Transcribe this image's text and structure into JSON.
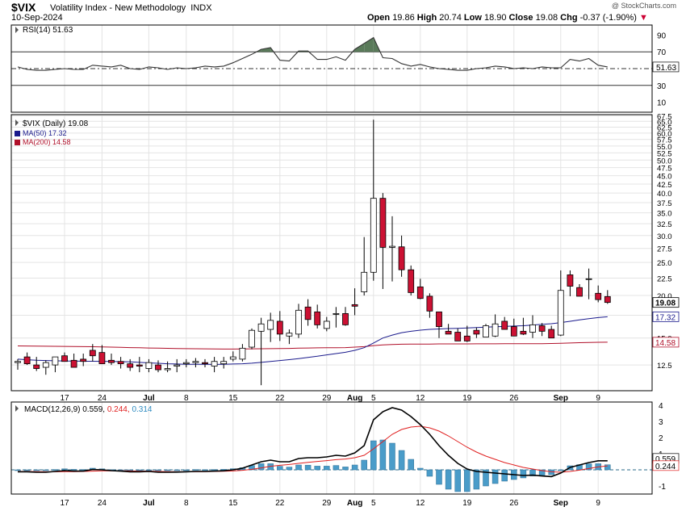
{
  "header": {
    "symbol": "$VIX",
    "name": "Volatility Index - New Methodology",
    "exchange": "INDX",
    "date": "10-Sep-2024",
    "watermark": "@ StockCharts.com",
    "open_label": "Open",
    "open": "19.86",
    "high_label": "High",
    "high": "20.74",
    "low_label": "Low",
    "low": "18.90",
    "close_label": "Close",
    "close": "19.08",
    "chg_label": "Chg",
    "chg": "-0.37 (-1.90%)"
  },
  "colors": {
    "up_candle": "#ffffff",
    "down_candle": "#cc1133",
    "candle_outline": "#000000",
    "ma50": "#1a1a8c",
    "ma200": "#b0102a",
    "macd_line": "#000000",
    "signal_line": "#e02020",
    "histogram": "#4a9cc9",
    "rsi_line": "#333333",
    "rsi_fill": "#5a7a5a",
    "grid": "#e4e4e4"
  },
  "chart_data": [
    {
      "type": "line",
      "title": "RSI(14) 51.63",
      "indicator": "RSI(14)",
      "last_value": "51.63",
      "yticks": [
        "90",
        "70",
        "50",
        "30",
        "10"
      ],
      "ylim": [
        0,
        100
      ],
      "reference_lines": [
        70,
        50,
        30
      ],
      "x": [
        "Jun 10",
        "Jun 11",
        "Jun 12",
        "Jun 13",
        "Jun 14",
        "Jun 17",
        "Jun 18",
        "Jun 20",
        "Jun 21",
        "Jun 24",
        "Jun 25",
        "Jun 26",
        "Jun 27",
        "Jun 28",
        "Jul 1",
        "Jul 2",
        "Jul 3",
        "Jul 5",
        "Jul 8",
        "Jul 9",
        "Jul 10",
        "Jul 11",
        "Jul 12",
        "Jul 15",
        "Jul 16",
        "Jul 17",
        "Jul 18",
        "Jul 19",
        "Jul 22",
        "Jul 23",
        "Jul 24",
        "Jul 25",
        "Jul 26",
        "Jul 29",
        "Jul 30",
        "Jul 31",
        "Aug 1",
        "Aug 2",
        "Aug 5",
        "Aug 6",
        "Aug 7",
        "Aug 8",
        "Aug 9",
        "Aug 12",
        "Aug 13",
        "Aug 14",
        "Aug 15",
        "Aug 16",
        "Aug 19",
        "Aug 20",
        "Aug 21",
        "Aug 22",
        "Aug 23",
        "Aug 26",
        "Aug 27",
        "Aug 28",
        "Aug 29",
        "Aug 30",
        "Sep 3",
        "Sep 4",
        "Sep 5",
        "Sep 6",
        "Sep 9",
        "Sep 10"
      ],
      "values": [
        52,
        49,
        48,
        48,
        49,
        50,
        49,
        49,
        54,
        53,
        52,
        54,
        50,
        49,
        52,
        51,
        49,
        51,
        50,
        51,
        53,
        52,
        53,
        57,
        62,
        67,
        73,
        75,
        60,
        59,
        71,
        71,
        61,
        61,
        64,
        60,
        73,
        80,
        87,
        63,
        62,
        56,
        53,
        55,
        52,
        50,
        49,
        48,
        48,
        50,
        51,
        53,
        52,
        50,
        51,
        50,
        52,
        51,
        51,
        61,
        59,
        62,
        54,
        52
      ]
    },
    {
      "type": "candlestick",
      "title": "$VIX (Daily) 19.08",
      "last_close_label": "19.08",
      "yscale": "log",
      "yticks": [
        "67.5",
        "65.0",
        "62.5",
        "60.0",
        "57.5",
        "55.0",
        "52.5",
        "50.0",
        "47.5",
        "45.0",
        "42.5",
        "40.0",
        "37.5",
        "35.0",
        "32.5",
        "30.0",
        "27.5",
        "25.0",
        "22.5",
        "20.0",
        "17.5",
        "15.0",
        "12.5"
      ],
      "ylim": [
        10.5,
        68
      ],
      "x": [
        "Jun 10",
        "Jun 11",
        "Jun 12",
        "Jun 13",
        "Jun 14",
        "Jun 17",
        "Jun 18",
        "Jun 20",
        "Jun 21",
        "Jun 24",
        "Jun 25",
        "Jun 26",
        "Jun 27",
        "Jun 28",
        "Jul 1",
        "Jul 2",
        "Jul 3",
        "Jul 5",
        "Jul 8",
        "Jul 9",
        "Jul 10",
        "Jul 11",
        "Jul 12",
        "Jul 15",
        "Jul 16",
        "Jul 17",
        "Jul 18",
        "Jul 19",
        "Jul 22",
        "Jul 23",
        "Jul 24",
        "Jul 25",
        "Jul 26",
        "Jul 29",
        "Jul 30",
        "Jul 31",
        "Aug 1",
        "Aug 2",
        "Aug 5",
        "Aug 6",
        "Aug 7",
        "Aug 8",
        "Aug 9",
        "Aug 12",
        "Aug 13",
        "Aug 14",
        "Aug 15",
        "Aug 16",
        "Aug 19",
        "Aug 20",
        "Aug 21",
        "Aug 22",
        "Aug 23",
        "Aug 26",
        "Aug 27",
        "Aug 28",
        "Aug 29",
        "Aug 30",
        "Sep 3",
        "Sep 4",
        "Sep 5",
        "Sep 6",
        "Sep 9",
        "Sep 10"
      ],
      "open": [
        12.7,
        13.2,
        12.5,
        12.3,
        12.5,
        13.3,
        12.9,
        13.0,
        13.8,
        13.6,
        12.9,
        12.8,
        12.6,
        12.5,
        12.2,
        12.5,
        12.1,
        12.4,
        12.6,
        12.7,
        12.7,
        12.4,
        12.6,
        13.0,
        13.0,
        14.1,
        15.7,
        15.9,
        16.8,
        15.2,
        15.4,
        18.5,
        17.9,
        16.0,
        17.6,
        17.7,
        18.8,
        20.5,
        23.4,
        38.6,
        27.7,
        27.8,
        23.8,
        21.2,
        19.9,
        17.9,
        15.7,
        15.6,
        15.2,
        15.8,
        15.1,
        15.2,
        16.8,
        16.2,
        15.7,
        15.6,
        16.3,
        15.9,
        15.3,
        23.0,
        21.1,
        22.4,
        20.3,
        19.86
      ],
      "high": [
        13.0,
        13.6,
        13.2,
        12.9,
        13.0,
        13.6,
        13.5,
        13.5,
        14.4,
        14.3,
        13.5,
        13.2,
        13.0,
        13.2,
        13.0,
        12.9,
        12.8,
        13.0,
        13.0,
        13.1,
        13.0,
        13.2,
        13.2,
        13.7,
        14.4,
        16.0,
        17.2,
        17.8,
        18.0,
        15.9,
        18.9,
        19.5,
        18.8,
        17.3,
        18.5,
        18.5,
        21.0,
        29.7,
        65.7,
        40.0,
        34.2,
        30.0,
        24.5,
        22.4,
        20.3,
        17.9,
        16.5,
        16.0,
        16.3,
        16.1,
        16.5,
        17.6,
        17.3,
        17.1,
        17.2,
        17.5,
        16.6,
        16.3,
        23.7,
        23.7,
        21.6,
        24.0,
        21.4,
        20.74
      ],
      "low": [
        12.1,
        12.5,
        12.0,
        11.7,
        11.9,
        12.8,
        12.5,
        12.4,
        12.8,
        12.9,
        12.5,
        12.2,
        12.0,
        11.9,
        11.9,
        11.9,
        11.9,
        11.9,
        12.3,
        12.3,
        12.3,
        11.9,
        12.2,
        12.8,
        12.8,
        13.9,
        10.9,
        14.6,
        14.7,
        14.4,
        15.0,
        16.3,
        16.0,
        15.7,
        16.1,
        16.3,
        17.5,
        20.0,
        22.1,
        20.9,
        22.0,
        22.7,
        20.0,
        19.5,
        17.2,
        15.0,
        15.4,
        14.8,
        14.6,
        15.0,
        15.2,
        15.1,
        15.9,
        15.3,
        15.3,
        15.0,
        15.2,
        15.1,
        15.2,
        19.9,
        20.2,
        19.5,
        19.1,
        18.9
      ],
      "close": [
        12.8,
        12.6,
        12.2,
        12.7,
        13.2,
        12.8,
        12.3,
        12.8,
        13.3,
        12.6,
        12.7,
        12.6,
        12.3,
        12.4,
        12.7,
        12.1,
        12.2,
        12.5,
        12.7,
        12.8,
        12.6,
        12.8,
        12.8,
        13.2,
        14.0,
        15.8,
        16.5,
        16.9,
        15.4,
        15.5,
        18.1,
        17.0,
        16.4,
        16.8,
        17.7,
        16.4,
        18.6,
        23.4,
        38.6,
        27.7,
        27.9,
        23.8,
        20.4,
        19.6,
        18.0,
        16.2,
        15.4,
        14.7,
        14.7,
        15.4,
        16.3,
        16.5,
        15.9,
        15.2,
        15.4,
        16.4,
        15.7,
        15.0,
        20.7,
        21.3,
        19.9,
        22.4,
        19.45,
        19.08
      ],
      "ma50_label": "MA(50) 17.32",
      "ma200_label": "MA(200) 14.58",
      "ma50_last_label": "17.32",
      "ma200_last_label": "14.58",
      "ma50": [
        13.0,
        12.95,
        12.9,
        12.88,
        12.86,
        12.84,
        12.83,
        12.82,
        12.82,
        12.81,
        12.8,
        12.78,
        12.76,
        12.72,
        12.68,
        12.64,
        12.6,
        12.58,
        12.56,
        12.56,
        12.56,
        12.55,
        12.56,
        12.58,
        12.6,
        12.65,
        12.72,
        12.8,
        12.88,
        12.96,
        13.05,
        13.16,
        13.26,
        13.38,
        13.5,
        13.62,
        13.8,
        14.05,
        14.5,
        15.0,
        15.3,
        15.55,
        15.7,
        15.82,
        15.9,
        15.95,
        15.99,
        16.02,
        16.05,
        16.1,
        16.14,
        16.18,
        16.22,
        16.26,
        16.3,
        16.38,
        16.45,
        16.52,
        16.65,
        16.8,
        16.95,
        17.1,
        17.22,
        17.32
      ],
      "ma200": [
        14.22,
        14.21,
        14.2,
        14.19,
        14.18,
        14.17,
        14.16,
        14.15,
        14.14,
        14.12,
        14.1,
        14.08,
        14.06,
        14.04,
        14.02,
        14.0,
        13.99,
        13.97,
        13.96,
        13.95,
        13.94,
        13.93,
        13.92,
        13.92,
        13.93,
        13.94,
        13.95,
        13.96,
        13.97,
        13.98,
        14.0,
        14.02,
        14.03,
        14.04,
        14.05,
        14.06,
        14.1,
        14.15,
        14.25,
        14.32,
        14.36,
        14.38,
        14.39,
        14.4,
        14.4,
        14.41,
        14.41,
        14.41,
        14.41,
        14.42,
        14.42,
        14.42,
        14.43,
        14.43,
        14.43,
        14.44,
        14.44,
        14.45,
        14.47,
        14.5,
        14.53,
        14.55,
        14.57,
        14.58
      ]
    },
    {
      "type": "line",
      "title": "MACD(12,26,9) 0.559, 0.244, 0.314",
      "indicator": "MACD(12,26,9)",
      "macd_value": "0.559",
      "signal_value": "0.244",
      "hist_value": "0.314",
      "macd_last_label": "0.559",
      "signal_last_label": "0.244",
      "yticks": [
        "4",
        "3",
        "2",
        "1",
        "-1"
      ],
      "ylim": [
        -1.5,
        4.2
      ],
      "x": [
        "Jun 10",
        "Jun 11",
        "Jun 12",
        "Jun 13",
        "Jun 14",
        "Jun 17",
        "Jun 18",
        "Jun 20",
        "Jun 21",
        "Jun 24",
        "Jun 25",
        "Jun 26",
        "Jun 27",
        "Jun 28",
        "Jul 1",
        "Jul 2",
        "Jul 3",
        "Jul 5",
        "Jul 8",
        "Jul 9",
        "Jul 10",
        "Jul 11",
        "Jul 12",
        "Jul 15",
        "Jul 16",
        "Jul 17",
        "Jul 18",
        "Jul 19",
        "Jul 22",
        "Jul 23",
        "Jul 24",
        "Jul 25",
        "Jul 26",
        "Jul 29",
        "Jul 30",
        "Jul 31",
        "Aug 1",
        "Aug 2",
        "Aug 5",
        "Aug 6",
        "Aug 7",
        "Aug 8",
        "Aug 9",
        "Aug 12",
        "Aug 13",
        "Aug 14",
        "Aug 15",
        "Aug 16",
        "Aug 19",
        "Aug 20",
        "Aug 21",
        "Aug 22",
        "Aug 23",
        "Aug 26",
        "Aug 27",
        "Aug 28",
        "Aug 29",
        "Aug 30",
        "Sep 3",
        "Sep 4",
        "Sep 5",
        "Sep 6",
        "Sep 9",
        "Sep 10"
      ],
      "series": [
        {
          "name": "MACD",
          "values": [
            -0.12,
            -0.12,
            -0.15,
            -0.15,
            -0.1,
            -0.05,
            -0.08,
            -0.08,
            0.02,
            0.0,
            -0.05,
            -0.08,
            -0.12,
            -0.12,
            -0.1,
            -0.15,
            -0.15,
            -0.14,
            -0.12,
            -0.1,
            -0.1,
            -0.08,
            -0.06,
            0.0,
            0.1,
            0.3,
            0.5,
            0.6,
            0.5,
            0.5,
            0.7,
            0.75,
            0.75,
            0.8,
            0.9,
            0.85,
            1.05,
            1.5,
            3.1,
            3.6,
            3.85,
            3.7,
            3.3,
            2.8,
            2.2,
            1.5,
            0.9,
            0.4,
            0.05,
            -0.1,
            -0.15,
            -0.2,
            -0.25,
            -0.3,
            -0.35,
            -0.33,
            -0.38,
            -0.42,
            -0.2,
            0.15,
            0.3,
            0.45,
            0.56,
            0.559
          ]
        },
        {
          "name": "Signal",
          "values": [
            -0.1,
            -0.1,
            -0.11,
            -0.12,
            -0.12,
            -0.11,
            -0.11,
            -0.1,
            -0.08,
            -0.06,
            -0.06,
            -0.06,
            -0.07,
            -0.08,
            -0.08,
            -0.1,
            -0.11,
            -0.12,
            -0.12,
            -0.12,
            -0.11,
            -0.1,
            -0.09,
            -0.07,
            -0.03,
            0.03,
            0.12,
            0.22,
            0.28,
            0.33,
            0.4,
            0.46,
            0.52,
            0.57,
            0.63,
            0.67,
            0.75,
            0.9,
            1.3,
            1.75,
            2.2,
            2.5,
            2.65,
            2.7,
            2.6,
            2.4,
            2.1,
            1.75,
            1.4,
            1.1,
            0.85,
            0.65,
            0.45,
            0.3,
            0.15,
            0.05,
            -0.05,
            -0.12,
            -0.15,
            -0.1,
            -0.02,
            0.08,
            0.18,
            0.244
          ]
        },
        {
          "name": "Histogram",
          "values": [
            -0.02,
            -0.02,
            -0.04,
            -0.03,
            0.02,
            0.06,
            0.03,
            0.02,
            0.1,
            0.06,
            0.01,
            -0.02,
            -0.05,
            -0.04,
            -0.02,
            -0.05,
            -0.04,
            -0.02,
            0.0,
            0.02,
            0.01,
            0.02,
            0.03,
            0.07,
            0.13,
            0.27,
            0.38,
            0.38,
            0.22,
            0.17,
            0.3,
            0.29,
            0.23,
            0.23,
            0.27,
            0.18,
            0.3,
            0.6,
            1.8,
            1.85,
            1.65,
            1.2,
            0.65,
            0.1,
            -0.4,
            -0.9,
            -1.2,
            -1.35,
            -1.35,
            -1.2,
            -1.0,
            -0.85,
            -0.7,
            -0.6,
            -0.5,
            -0.38,
            -0.33,
            -0.3,
            -0.05,
            0.25,
            0.32,
            0.37,
            0.38,
            0.314
          ]
        }
      ]
    }
  ],
  "x_axis": {
    "date_labels": [
      {
        "label": "17",
        "date": "Jun 17"
      },
      {
        "label": "24",
        "date": "Jun 24"
      },
      {
        "label": "Jul",
        "date": "Jul 1",
        "bold": true
      },
      {
        "label": "8",
        "date": "Jul 8"
      },
      {
        "label": "15",
        "date": "Jul 15"
      },
      {
        "label": "22",
        "date": "Jul 22"
      },
      {
        "label": "29",
        "date": "Jul 29"
      },
      {
        "label": "Aug",
        "date": "Aug 1",
        "bold": true
      },
      {
        "label": "5",
        "date": "Aug 5"
      },
      {
        "label": "12",
        "date": "Aug 12"
      },
      {
        "label": "19",
        "date": "Aug 19"
      },
      {
        "label": "26",
        "date": "Aug 26"
      },
      {
        "label": "Sep",
        "date": "Sep 3",
        "bold": true
      },
      {
        "label": "9",
        "date": "Sep 9"
      }
    ]
  }
}
